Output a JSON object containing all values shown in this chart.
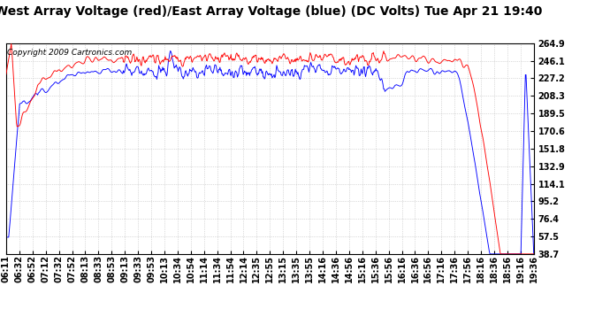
{
  "title": "West Array Voltage (red)/East Array Voltage (blue) (DC Volts) Tue Apr 21 19:40",
  "copyright_text": "Copyright 2009 Cartronics.com",
  "ytick_values": [
    264.9,
    246.1,
    227.2,
    208.3,
    189.5,
    170.6,
    151.8,
    132.9,
    114.1,
    95.2,
    76.4,
    57.5,
    38.7
  ],
  "xtick_labels": [
    "06:11",
    "06:32",
    "06:52",
    "07:12",
    "07:32",
    "07:52",
    "08:13",
    "08:33",
    "08:53",
    "09:13",
    "09:33",
    "09:53",
    "10:13",
    "10:34",
    "10:54",
    "11:14",
    "11:34",
    "11:54",
    "12:14",
    "12:35",
    "12:55",
    "13:15",
    "13:35",
    "13:55",
    "14:16",
    "14:36",
    "14:56",
    "15:16",
    "15:36",
    "15:56",
    "16:16",
    "16:36",
    "16:56",
    "17:16",
    "17:36",
    "17:56",
    "18:16",
    "18:36",
    "18:56",
    "19:16",
    "19:36"
  ],
  "ymin": 38.7,
  "ymax": 264.9,
  "bg_color": "#ffffff",
  "grid_color": "#bbbbbb",
  "red_color": "#ff0000",
  "blue_color": "#0000ff",
  "title_fontsize": 10,
  "copyright_fontsize": 6.5,
  "tick_fontsize": 7,
  "linewidth": 0.65
}
